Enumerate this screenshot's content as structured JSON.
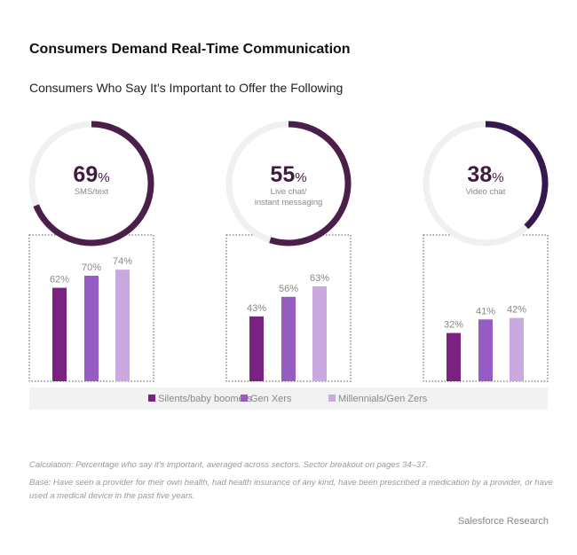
{
  "title": "Consumers Demand Real-Time Communication",
  "subtitle": "Consumers Who Say It's Important to Offer the Following",
  "chart_data": {
    "type": "bar",
    "value_range": [
      0,
      100
    ],
    "unit": "%",
    "legend_position": "bottom",
    "series": [
      {
        "name": "Silents/baby boomers",
        "color": "#7a2282"
      },
      {
        "name": "Gen Xers",
        "color": "#955cc4"
      },
      {
        "name": "Millennials/Gen Zers",
        "color": "#c9a9e0"
      }
    ],
    "groups": [
      {
        "label": "SMS/text",
        "total": 69,
        "total_label": "69",
        "ring_color": "#4b1f49",
        "values": [
          62,
          70,
          74
        ],
        "value_labels": [
          "62%",
          "70%",
          "74%"
        ]
      },
      {
        "label": "Live chat/\ninstant messaging",
        "label_lines": [
          "Live chat/",
          "instant messaging"
        ],
        "total": 55,
        "total_label": "55",
        "ring_color": "#4b1f49",
        "values": [
          43,
          56,
          63
        ],
        "value_labels": [
          "43%",
          "56%",
          "63%"
        ]
      },
      {
        "label": "Video chat",
        "total": 38,
        "total_label": "38",
        "ring_color": "#34184f",
        "values": [
          32,
          41,
          42
        ],
        "value_labels": [
          "32%",
          "41%",
          "42%"
        ]
      }
    ],
    "ring_track_color": "#f0f0f0",
    "legend_bg": "#f2f2f2"
  },
  "footnotes": {
    "calculation": "Calculation: Percentage who say it's important, averaged across sectors. Sector breakout on pages 34–37.",
    "base": "Base: Have seen a provider for their own health, had health insurance of any kind, have been prescribed a medication by a provider, or have used a medical device in the past five years."
  },
  "source": "Salesforce Research"
}
